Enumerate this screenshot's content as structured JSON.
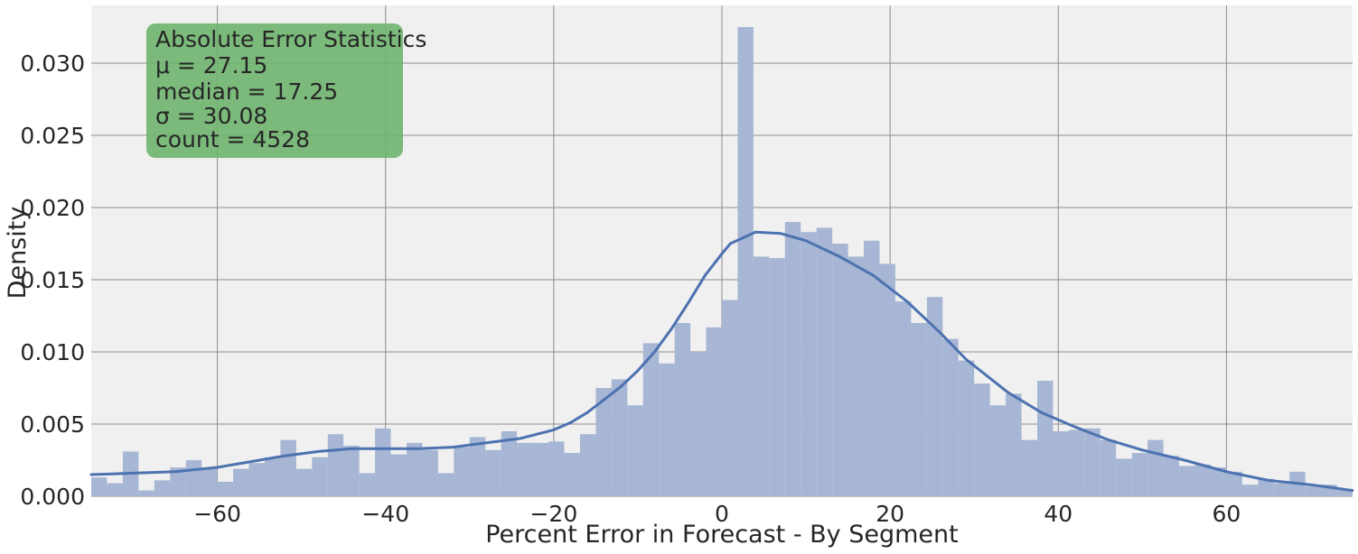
{
  "chart_data": {
    "type": "bar",
    "subtype": "histogram-with-kde",
    "xlabel": "Percent Error in Forecast - By Segment",
    "ylabel": "Density",
    "xlim": [
      -75,
      75
    ],
    "ylim": [
      0,
      0.034
    ],
    "x_ticks": [
      -60,
      -40,
      -20,
      0,
      20,
      40,
      60
    ],
    "x_tick_labels": [
      "−60",
      "−40",
      "−20",
      "0",
      "20",
      "40",
      "60"
    ],
    "y_ticks": [
      0,
      0.005,
      0.01,
      0.015,
      0.02,
      0.025,
      0.03
    ],
    "y_tick_labels": [
      "0.000",
      "0.005",
      "0.010",
      "0.015",
      "0.020",
      "0.025",
      "0.030"
    ],
    "grid": true,
    "bin_width": 1.875,
    "bin_start": -75,
    "bin_densities": [
      0.0013,
      0.0009,
      0.0031,
      0.0004,
      0.0011,
      0.002,
      0.0025,
      0.0019,
      0.001,
      0.0019,
      0.0023,
      0.0027,
      0.0039,
      0.0019,
      0.0027,
      0.0043,
      0.0035,
      0.0016,
      0.0047,
      0.0029,
      0.0037,
      0.0032,
      0.0016,
      0.0034,
      0.0041,
      0.0032,
      0.0045,
      0.0037,
      0.0037,
      0.0038,
      0.003,
      0.0043,
      0.0075,
      0.0081,
      0.0063,
      0.0106,
      0.0092,
      0.012,
      0.01,
      0.0117,
      0.0136,
      0.0325,
      0.0166,
      0.0165,
      0.019,
      0.0183,
      0.0186,
      0.0175,
      0.0166,
      0.0177,
      0.0161,
      0.0135,
      0.012,
      0.0138,
      0.0109,
      0.0094,
      0.0078,
      0.0063,
      0.0071,
      0.0039,
      0.008,
      0.0045,
      0.0046,
      0.0047,
      0.0039,
      0.0026,
      0.003,
      0.0039,
      0.0028,
      0.0021,
      0.0022,
      0.002,
      0.0017,
      0.0008,
      0.0012,
      0.0009,
      0.0017,
      0.0007,
      0.0008,
      0.0005
    ],
    "kde": {
      "x": [
        -75,
        -70,
        -65,
        -60,
        -56,
        -52,
        -48,
        -44,
        -40,
        -36,
        -32,
        -28,
        -24,
        -20,
        -18,
        -16,
        -14,
        -12,
        -10,
        -8,
        -6,
        -4,
        -2,
        0,
        1,
        4,
        7,
        10,
        14,
        18,
        22,
        26,
        29,
        34,
        38,
        42,
        46,
        50,
        55,
        60,
        65,
        70,
        75
      ],
      "y": [
        0.0015,
        0.0016,
        0.0017,
        0.002,
        0.0024,
        0.0028,
        0.0031,
        0.0033,
        0.0033,
        0.0033,
        0.0034,
        0.0037,
        0.004,
        0.0046,
        0.0051,
        0.0058,
        0.0067,
        0.0076,
        0.0087,
        0.01,
        0.0116,
        0.0134,
        0.0153,
        0.0168,
        0.0175,
        0.0183,
        0.0182,
        0.0177,
        0.0166,
        0.0153,
        0.0135,
        0.0113,
        0.0095,
        0.0072,
        0.0058,
        0.0048,
        0.0039,
        0.0032,
        0.0025,
        0.0017,
        0.0011,
        0.0008,
        0.0004
      ]
    },
    "colors": {
      "bars": "#a6b6d4",
      "kde_line": "#4c72b0",
      "plot_background": "#f0f0f0",
      "grid": "#8c8c8c",
      "stats_box": "#6eb46e"
    },
    "annotation": {
      "position": "top-left",
      "lines": [
        "Absolute Error Statistics",
        "μ = 27.15",
        "median = 17.25",
        "σ = 30.08",
        "count = 4528"
      ]
    }
  }
}
